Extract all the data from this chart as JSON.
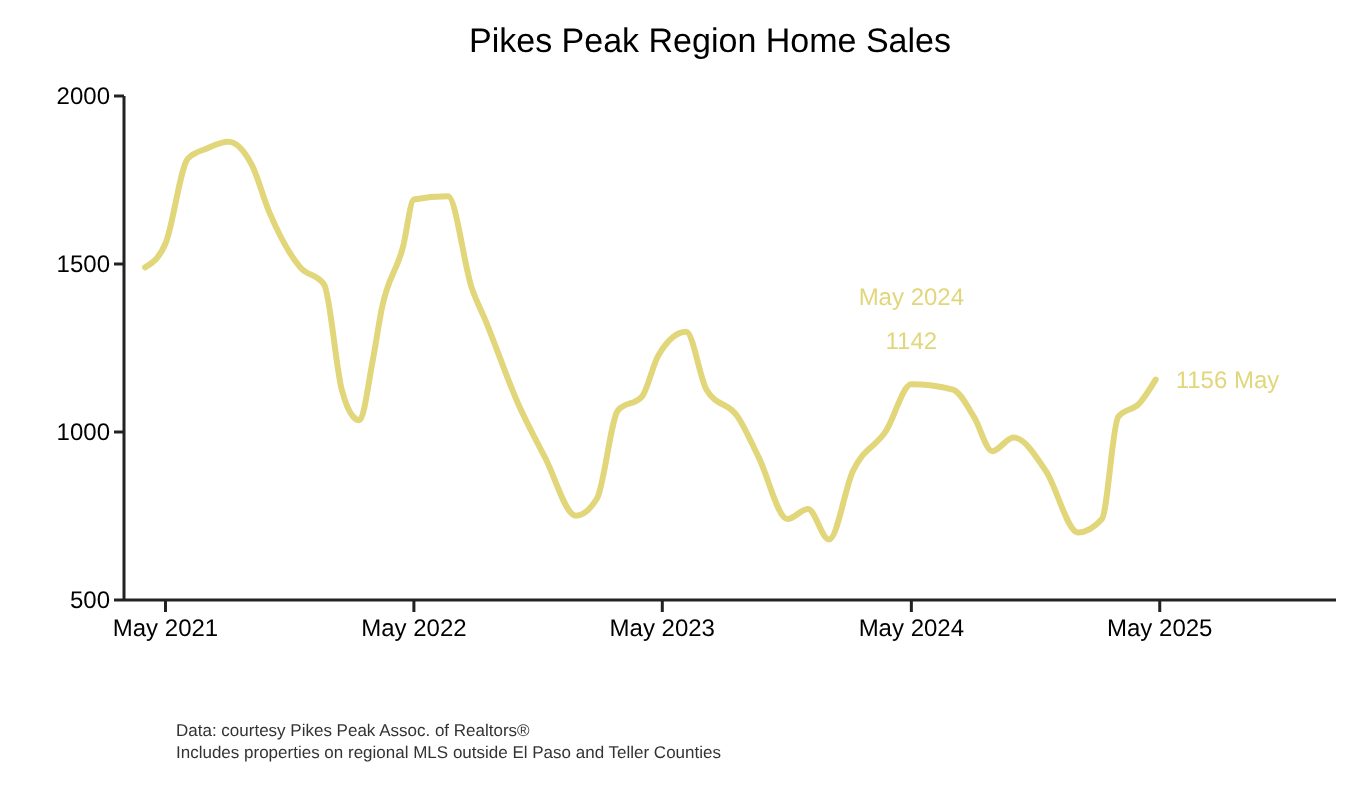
{
  "chart_data": {
    "type": "line",
    "title": "Pikes Peak Region Home Sales",
    "x": [
      "2021-04-01",
      "2021-05-01",
      "2021-06-03",
      "2021-07-01",
      "2021-08-01",
      "2021-09-05",
      "2021-10-01",
      "2021-11-15",
      "2021-12-20",
      "2022-01-15",
      "2022-02-01",
      "2022-02-10",
      "2022-03-01",
      "2022-03-15",
      "2022-04-15",
      "2022-05-01",
      "2022-06-20",
      "2022-07-25",
      "2022-08-15",
      "2022-10-01",
      "2022-11-10",
      "2022-12-25",
      "2023-01-25",
      "2023-02-25",
      "2023-04-01",
      "2023-04-25",
      "2023-06-05",
      "2023-07-05",
      "2023-08-20",
      "2023-09-20",
      "2023-11-01",
      "2023-12-01",
      "2024-01-01",
      "2024-02-05",
      "2024-03-25",
      "2024-05-01",
      "2024-07-01",
      "2024-08-01",
      "2024-08-28",
      "2024-09-28",
      "2024-11-15",
      "2025-01-01",
      "2025-02-05",
      "2025-03-01",
      "2025-04-01",
      "2025-04-25"
    ],
    "series": [
      {
        "color": "#e2d67a",
        "values": [
          1490,
          1561,
          1814,
          1844,
          1864,
          1794,
          1652,
          1490,
          1439,
          1126,
          1045,
          1035,
          1207,
          1369,
          1551,
          1692,
          1702,
          1429,
          1328,
          1085,
          923,
          751,
          802,
          1065,
          1105,
          1227,
          1298,
          1126,
          1045,
          923,
          741,
          771,
          680,
          883,
          1004,
          1142,
          1126,
          1045,
          943,
          984,
          883,
          701,
          741,
          1045,
          1085,
          1156
        ]
      }
    ],
    "xlim": [
      "2021-03-01",
      "2026-01-15"
    ],
    "xticks": [
      {
        "value": "2021-05-01",
        "label": "May 2021"
      },
      {
        "value": "2022-05-01",
        "label": "May 2022"
      },
      {
        "value": "2023-05-01",
        "label": "May 2023"
      },
      {
        "value": "2024-05-01",
        "label": "May 2024"
      },
      {
        "value": "2025-05-01",
        "label": "May 2025"
      }
    ],
    "ylim": [
      500,
      2000
    ],
    "yticks": [
      500,
      1000,
      1500,
      2000
    ],
    "grid": false,
    "annotations": [
      {
        "text": "May 2024\n1142",
        "x": "2024-05-01",
        "y": 1142
      },
      {
        "text": "1156 May",
        "x": "2025-04-25",
        "y": 1156
      },
      "Data: courtesy Pikes Peak Assoc. of Realtors®",
      "Includes properties on regional MLS outside El Paso and Teller Counties"
    ]
  }
}
